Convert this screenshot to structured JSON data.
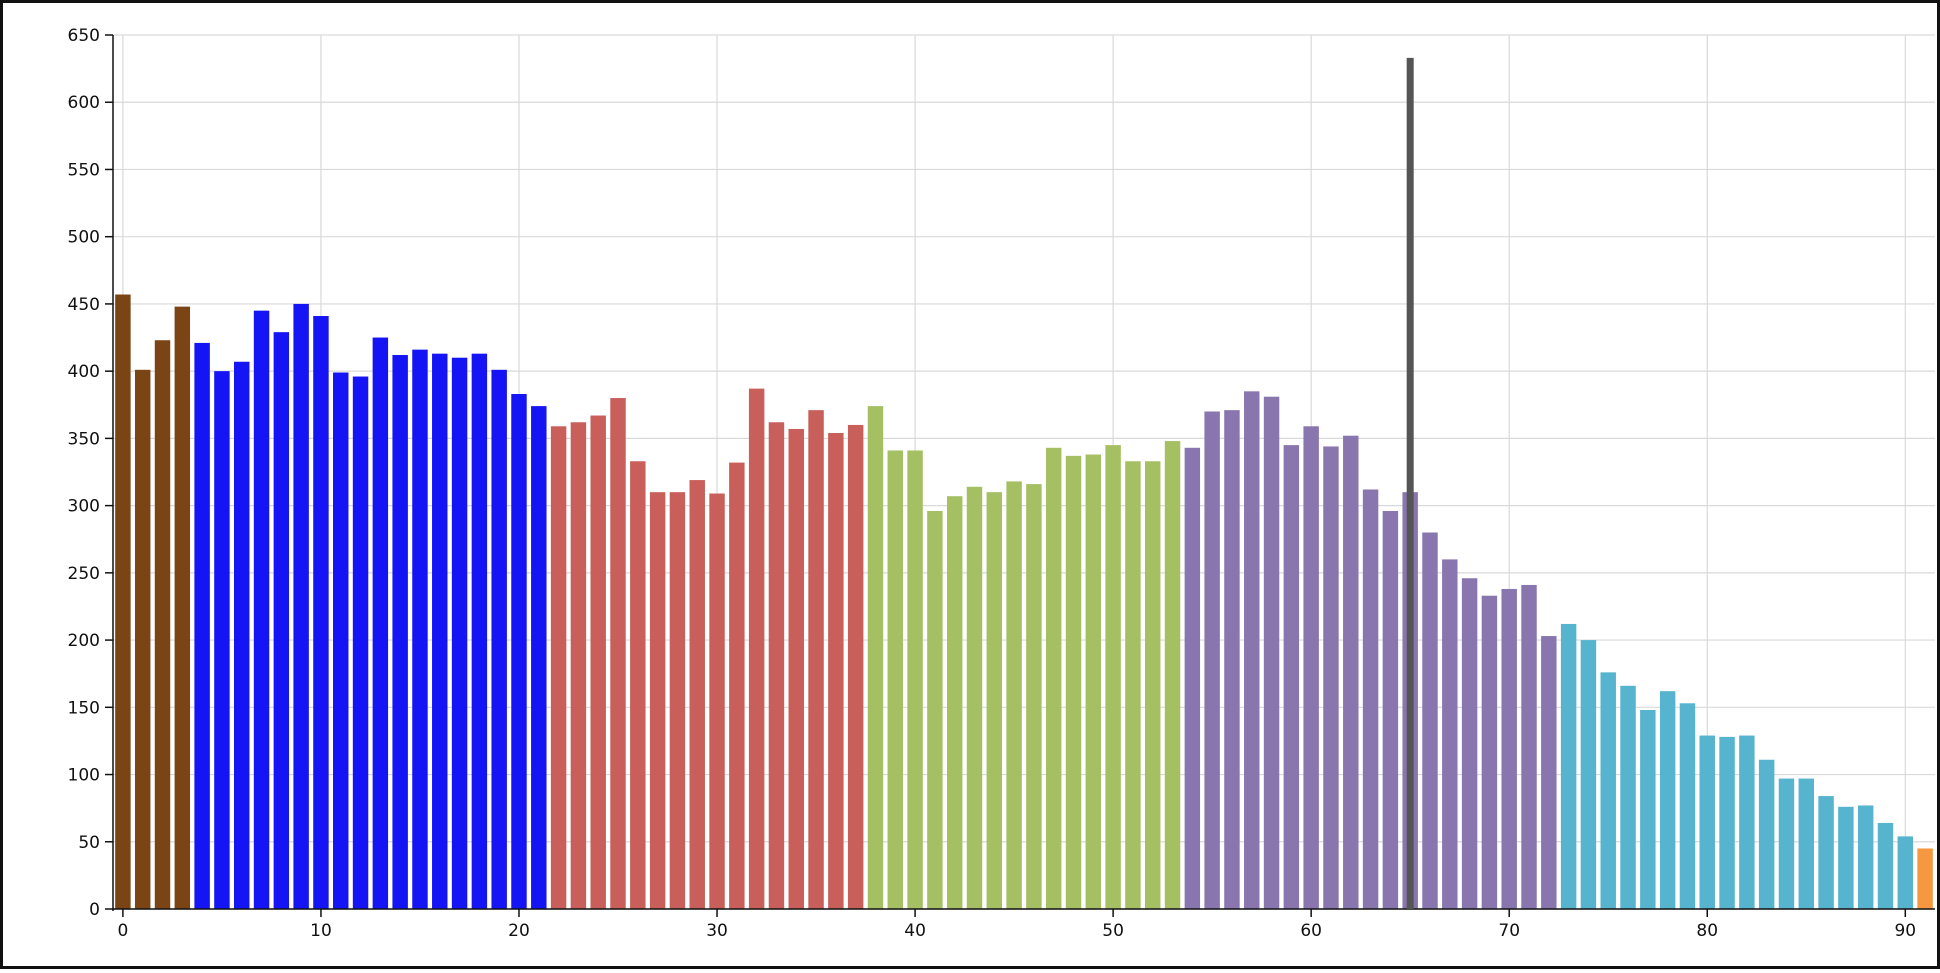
{
  "chart_data": {
    "type": "bar",
    "title": "",
    "xlabel": "",
    "ylabel": "",
    "xlim": [
      -0.5,
      91.5
    ],
    "ylim": [
      0,
      650
    ],
    "xticks": [
      0,
      10,
      20,
      30,
      40,
      50,
      60,
      70,
      80,
      90
    ],
    "yticks": [
      0,
      50,
      100,
      150,
      200,
      250,
      300,
      350,
      400,
      450,
      500,
      550,
      600,
      650
    ],
    "grid": true,
    "legend": "none",
    "marker": {
      "x": 65,
      "y_top": 633,
      "color": "#555555"
    },
    "groups": [
      {
        "color": "#7b4415",
        "start": 0,
        "values": [
          457,
          401,
          423,
          448
        ]
      },
      {
        "color": "#1414f5",
        "start": 4,
        "values": [
          421,
          400,
          407,
          445,
          429,
          450,
          441,
          399,
          396,
          425,
          412,
          416,
          413,
          410,
          413,
          401,
          383,
          374
        ]
      },
      {
        "color": "#c85f5a",
        "start": 22,
        "values": [
          359,
          362,
          367,
          380,
          333,
          310,
          310,
          319,
          309,
          332,
          387,
          362,
          357,
          371,
          354,
          360
        ]
      },
      {
        "color": "#a4c062",
        "start": 38,
        "values": [
          374,
          341,
          341,
          296,
          307,
          314,
          310,
          318,
          316,
          343,
          337,
          338,
          345,
          333,
          333,
          348
        ]
      },
      {
        "color": "#8a76ae",
        "start": 54,
        "values": [
          343,
          370,
          371,
          385,
          381,
          345,
          359,
          344,
          352,
          312,
          296,
          310,
          280,
          260,
          246,
          233,
          238,
          241,
          203
        ]
      },
      {
        "color": "#57b4cf",
        "start": 73,
        "values": [
          212,
          200,
          176,
          166,
          148,
          162,
          153,
          129,
          128,
          129,
          111,
          97,
          97,
          84,
          76,
          77,
          64,
          54
        ]
      },
      {
        "color": "#f5983f",
        "start": 91,
        "values": [
          45
        ]
      }
    ]
  }
}
